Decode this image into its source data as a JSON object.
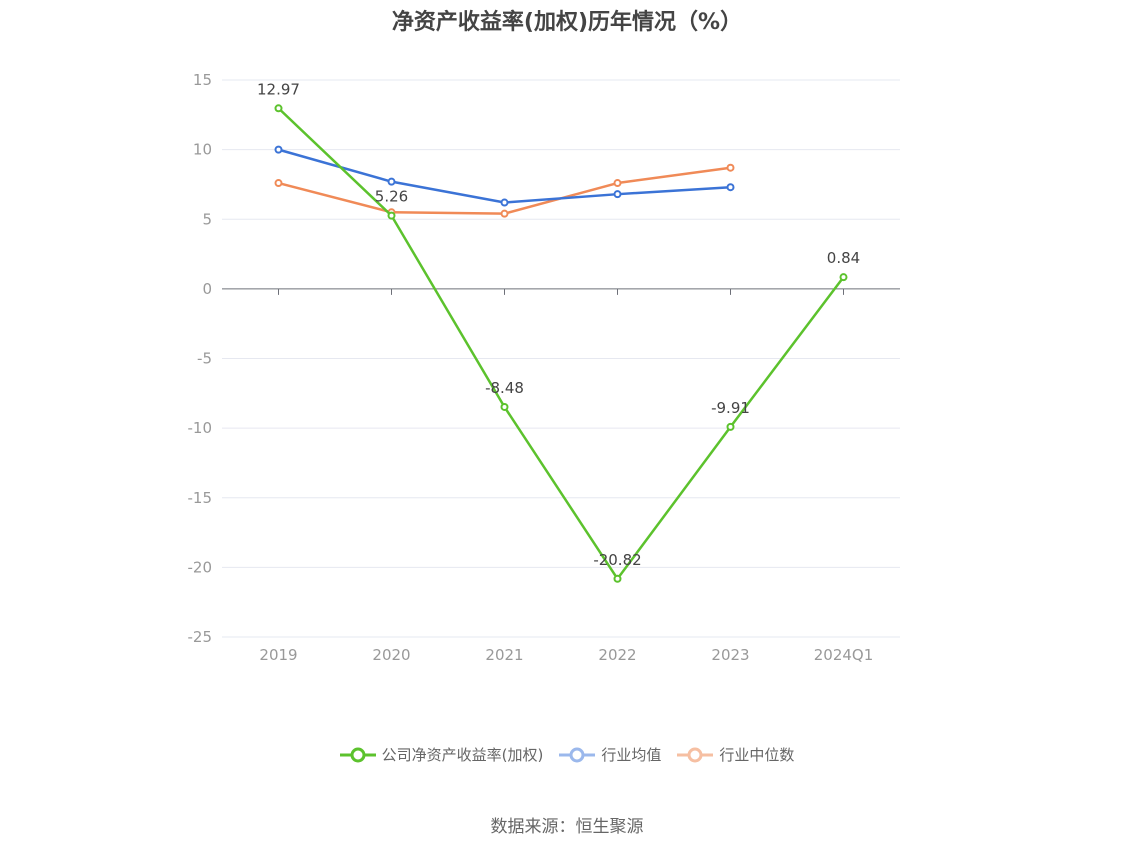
{
  "title": "净资产收益率(加权)历年情况（%）",
  "source": "数据来源：恒生聚源",
  "legend": {
    "series0": "公司净资产收益率(加权)",
    "series1": "行业均值",
    "series2": "行业中位数"
  },
  "colors": {
    "series0": "#5cc22d",
    "series1": "#3b73d6",
    "series2": "#f08a57",
    "grid": "#e6e8f0",
    "axis": "#6e7079"
  },
  "chart_data": {
    "type": "line",
    "title": "净资产收益率(加权)历年情况（%）",
    "categories": [
      "2019",
      "2020",
      "2021",
      "2022",
      "2023",
      "2024Q1"
    ],
    "ylim": [
      -25,
      15
    ],
    "yticks": [
      15,
      10,
      5,
      0,
      -5,
      -10,
      -15,
      -20,
      -25
    ],
    "grid": true,
    "legend_position": "bottom",
    "series": [
      {
        "name": "公司净资产收益率(加权)",
        "values": [
          12.97,
          5.26,
          -8.48,
          -20.82,
          -9.91,
          0.84
        ],
        "labels": [
          "12.97",
          "5.26",
          "-8.48",
          "-20.82",
          "-9.91",
          "0.84"
        ]
      },
      {
        "name": "行业均值",
        "values": [
          10.0,
          7.7,
          6.2,
          6.8,
          7.3,
          null
        ]
      },
      {
        "name": "行业中位数",
        "values": [
          7.6,
          5.5,
          5.4,
          7.6,
          8.7,
          null
        ]
      }
    ]
  }
}
